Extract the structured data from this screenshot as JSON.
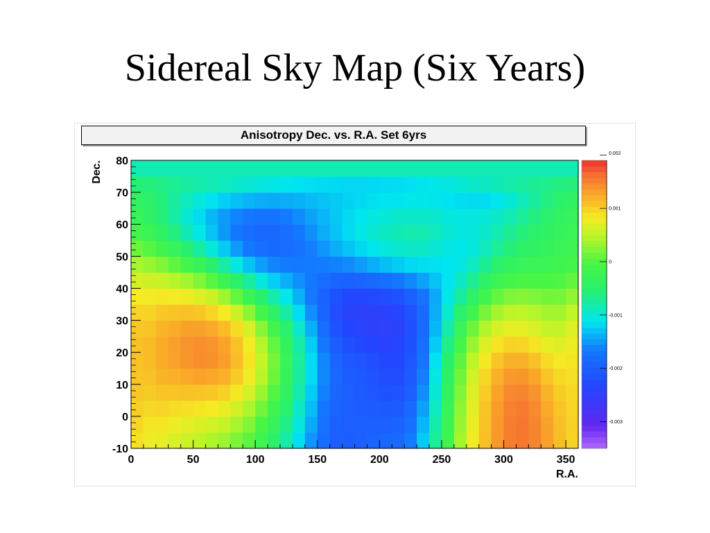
{
  "slide": {
    "title": "Sidereal Sky Map (Six Years)"
  },
  "chart_data": {
    "type": "heatmap",
    "title": "Anisotropy Dec. vs. R.A.  Set 6yrs",
    "xlabel": "R.A.",
    "ylabel": "Dec.",
    "xlim": [
      0,
      360
    ],
    "ylim": [
      -10,
      80
    ],
    "x_ticks": [
      "0",
      "50",
      "100",
      "150",
      "200",
      "250",
      "300",
      "350"
    ],
    "y_ticks": [
      "-10",
      "0",
      "10",
      "20",
      "30",
      "40",
      "50",
      "60",
      "70",
      "80"
    ],
    "z_range": [
      -0.0035,
      0.0019
    ],
    "palette_ticks": [
      "0.002",
      "0.001",
      "0",
      "-0.001",
      "-0.002",
      "-0.003"
    ],
    "x_bin_centers": [
      5,
      15,
      25,
      35,
      45,
      55,
      65,
      75,
      85,
      95,
      105,
      115,
      125,
      135,
      145,
      155,
      165,
      175,
      185,
      195,
      205,
      215,
      225,
      235,
      245,
      255,
      265,
      275,
      285,
      295,
      305,
      315,
      325,
      335,
      345,
      355
    ],
    "y_bin_centers": [
      -7.5,
      -2.5,
      2.5,
      7.5,
      12.5,
      17.5,
      22.5,
      27.5,
      32.5,
      37.5,
      42.5,
      47.5,
      52.5,
      57.5,
      62.5,
      67.5,
      72.5,
      77.5
    ],
    "z_rows": [
      [
        0.00089,
        0.00078,
        0.00075,
        0.00065,
        0.00058,
        0.0005,
        0.00043,
        0.00034,
        0.0002,
        5e-05,
        -0.00018,
        -0.00046,
        -0.0008,
        -0.00116,
        -0.00152,
        -0.00181,
        -0.002,
        -0.00201,
        -0.00197,
        -0.00192,
        -0.00189,
        -0.00184,
        -0.00165,
        -0.00126,
        -0.00072,
        -0.00013,
        0.00038,
        0.00079,
        0.00111,
        0.00136,
        0.00153,
        0.00157,
        0.00149,
        0.00131,
        0.00112,
        0.00098
      ],
      [
        0.00095,
        0.00085,
        0.00085,
        0.00077,
        0.00072,
        0.00066,
        0.0006,
        0.00053,
        0.00039,
        0.00022,
        -2e-05,
        -0.0003,
        -0.00066,
        -0.00104,
        -0.00142,
        -0.00174,
        -0.00196,
        -0.002,
        -0.00199,
        -0.00197,
        -0.00197,
        -0.00193,
        -0.00175,
        -0.00136,
        -0.00081,
        -0.0002,
        0.00033,
        0.00076,
        0.0011,
        0.00136,
        0.00153,
        0.00157,
        0.00149,
        0.0013,
        0.00111,
        0.00099
      ],
      [
        0.001,
        0.00094,
        0.00097,
        0.00092,
        0.00089,
        0.00086,
        0.00082,
        0.00075,
        0.00061,
        0.00042,
        0.00016,
        -0.00014,
        -0.00052,
        -0.00093,
        -0.00133,
        -0.00168,
        -0.00192,
        -0.002,
        -0.00202,
        -0.00204,
        -0.00207,
        -0.00204,
        -0.00186,
        -0.00146,
        -0.0009,
        -0.00027,
        0.00028,
        0.00072,
        0.00107,
        0.00134,
        0.00151,
        0.00155,
        0.00146,
        0.00126,
        0.00108,
        0.00097
      ],
      [
        0.00105,
        0.00103,
        0.00108,
        0.00108,
        0.00109,
        0.00108,
        0.00106,
        0.00099,
        0.00084,
        0.00062,
        0.00034,
        1e-05,
        -0.00039,
        -0.00082,
        -0.00125,
        -0.00162,
        -0.00189,
        -0.002,
        -0.00204,
        -0.0021,
        -0.00216,
        -0.00215,
        -0.00197,
        -0.00155,
        -0.00099,
        -0.00034,
        0.00022,
        0.00067,
        0.00102,
        0.00129,
        0.00146,
        0.00149,
        0.00139,
        0.00119,
        0.00102,
        0.00094
      ],
      [
        0.00108,
        0.00109,
        0.00118,
        0.00121,
        0.00126,
        0.00129,
        0.00128,
        0.00121,
        0.00103,
        0.00079,
        0.00048,
        0.00013,
        -0.0003,
        -0.00074,
        -0.00118,
        -0.00158,
        -0.00187,
        -0.00201,
        -0.00207,
        -0.00214,
        -0.00223,
        -0.00223,
        -0.00205,
        -0.00163,
        -0.00106,
        -0.00042,
        0.00015,
        0.0006,
        0.00095,
        0.00121,
        0.00136,
        0.00138,
        0.00127,
        0.00108,
        0.00094,
        0.0009
      ],
      [
        0.0011,
        0.00113,
        0.00124,
        0.00131,
        0.00138,
        0.00142,
        0.00141,
        0.00133,
        0.00114,
        0.00087,
        0.00054,
        0.00017,
        -0.00027,
        -0.00072,
        -0.00118,
        -0.00159,
        -0.00191,
        -0.00206,
        -0.00213,
        -0.00221,
        -0.00229,
        -0.00229,
        -0.00211,
        -0.0017,
        -0.00114,
        -0.00051,
        5e-05,
        0.00049,
        0.00083,
        0.00107,
        0.0012,
        0.0012,
        0.00109,
        0.00092,
        0.00083,
        0.00085
      ],
      [
        0.0011,
        0.00113,
        0.00124,
        0.00132,
        0.00139,
        0.00142,
        0.00139,
        0.00129,
        0.00109,
        0.00081,
        0.00046,
        9e-05,
        -0.00034,
        -0.00079,
        -0.00125,
        -0.00168,
        -0.00202,
        -0.00219,
        -0.00227,
        -0.00233,
        -0.00239,
        -0.00236,
        -0.00216,
        -0.00177,
        -0.00125,
        -0.00064,
        -9e-05,
        0.00033,
        0.00066,
        0.00087,
        0.00098,
        0.00097,
        0.00087,
        0.00073,
        0.00068,
        0.00077
      ],
      [
        0.00106,
        0.00108,
        0.00118,
        0.00124,
        0.0013,
        0.0013,
        0.00125,
        0.00113,
        0.00091,
        0.00062,
        0.00026,
        -0.00011,
        -0.00052,
        -0.00095,
        -0.00139,
        -0.00181,
        -0.00215,
        -0.00233,
        -0.0024,
        -0.00244,
        -0.00245,
        -0.00239,
        -0.0022,
        -0.00183,
        -0.00135,
        -0.0008,
        -0.00027,
        0.00013,
        0.00044,
        0.00063,
        0.00073,
        0.00073,
        0.00065,
        0.00054,
        0.00053,
        0.00067
      ],
      [
        0.00097,
        0.00098,
        0.00105,
        0.00108,
        0.0011,
        0.00106,
        0.00097,
        0.00082,
        0.00058,
        0.00027,
        -8e-05,
        -0.00043,
        -0.00079,
        -0.00117,
        -0.00155,
        -0.00192,
        -0.00222,
        -0.00239,
        -0.00244,
        -0.00244,
        -0.00243,
        -0.00234,
        -0.00215,
        -0.00183,
        -0.00141,
        -0.00096,
        -0.00052,
        -0.00015,
        0.00018,
        0.00038,
        0.00049,
        0.00051,
        0.00045,
        0.00037,
        0.00037,
        0.00051
      ],
      [
        0.00082,
        0.00081,
        0.00084,
        0.00081,
        0.00078,
        0.00069,
        0.00055,
        0.00035,
        9e-05,
        -0.00022,
        -0.00053,
        -0.00082,
        -0.00109,
        -0.00138,
        -0.00166,
        -0.00194,
        -0.00216,
        -0.00228,
        -0.0023,
        -0.00227,
        -0.00222,
        -0.00214,
        -0.00197,
        -0.00174,
        -0.00142,
        -0.00108,
        -0.00075,
        -0.00044,
        -0.00014,
        9e-05,
        0.00021,
        0.00024,
        0.00021,
        0.00016,
        0.00017,
        0.00029
      ],
      [
        0.00062,
        0.00058,
        0.00055,
        0.00046,
        0.00037,
        0.00022,
        3e-05,
        -0.00021,
        -0.00049,
        -0.00077,
        -0.00103,
        -0.00124,
        -0.00139,
        -0.00154,
        -0.00167,
        -0.00181,
        -0.00191,
        -0.00195,
        -0.00191,
        -0.00184,
        -0.00178,
        -0.00169,
        -0.00158,
        -0.00146,
        -0.0013,
        -0.00113,
        -0.00093,
        -0.00069,
        -0.00044,
        -0.00023,
        -8e-05,
        -2e-05,
        -3e-05,
        -3e-05,
        -1e-05,
        8e-05
      ],
      [
        0.00039,
        0.00032,
        0.00022,
        7e-05,
        -9e-05,
        -0.00028,
        -0.00053,
        -0.00078,
        -0.00105,
        -0.0013,
        -0.00148,
        -0.0016,
        -0.00165,
        -0.00166,
        -0.00165,
        -0.00164,
        -0.00162,
        -0.00157,
        -0.00149,
        -0.0014,
        -0.00132,
        -0.00125,
        -0.00119,
        -0.00116,
        -0.00115,
        -0.00113,
        -0.00106,
        -0.00091,
        -0.00071,
        -0.00052,
        -0.00036,
        -0.00027,
        -0.00024,
        -0.00021,
        -0.00016,
        -9e-05
      ],
      [
        0.00013,
        3e-05,
        -0.00013,
        -0.00032,
        -0.00054,
        -0.00077,
        -0.00102,
        -0.00126,
        -0.00149,
        -0.00168,
        -0.0018,
        -0.00184,
        -0.00182,
        -0.00174,
        -0.00163,
        -0.00152,
        -0.0014,
        -0.0013,
        -0.0012,
        -0.00111,
        -0.00104,
        -0.00097,
        -0.00093,
        -0.00093,
        -0.00099,
        -0.00106,
        -0.00109,
        -0.00103,
        -0.00089,
        -0.00072,
        -0.00058,
        -0.00047,
        -0.0004,
        -0.00033,
        -0.00026,
        -0.0002
      ],
      [
        -0.00011,
        -0.00023,
        -0.00041,
        -0.00062,
        -0.00086,
        -0.00108,
        -0.0013,
        -0.0015,
        -0.00168,
        -0.00181,
        -0.00187,
        -0.00186,
        -0.00179,
        -0.00168,
        -0.00155,
        -0.00141,
        -0.00129,
        -0.00118,
        -0.00108,
        -0.00099,
        -0.00092,
        -0.00086,
        -0.00082,
        -0.00084,
        -0.0009,
        -0.00099,
        -0.00105,
        -0.00103,
        -0.00095,
        -0.00083,
        -0.00071,
        -0.00059,
        -0.00049,
        -0.00039,
        -0.00031,
        -0.00024
      ],
      [
        -0.00028,
        -0.0004,
        -0.00057,
        -0.00078,
        -0.00099,
        -0.00118,
        -0.00135,
        -0.00149,
        -0.00161,
        -0.00169,
        -0.00172,
        -0.00171,
        -0.00165,
        -0.00156,
        -0.00146,
        -0.00136,
        -0.00127,
        -0.00119,
        -0.00112,
        -0.00106,
        -0.00101,
        -0.00096,
        -0.00094,
        -0.00094,
        -0.00098,
        -0.00103,
        -0.00106,
        -0.00105,
        -0.00101,
        -0.00094,
        -0.00085,
        -0.00073,
        -0.00061,
        -0.00049,
        -0.00038,
        -0.0003
      ],
      [
        -0.00038,
        -0.00047,
        -0.0006,
        -0.00075,
        -0.0009,
        -0.00103,
        -0.00114,
        -0.00123,
        -0.00131,
        -0.00137,
        -0.00141,
        -0.00142,
        -0.00141,
        -0.00138,
        -0.00134,
        -0.0013,
        -0.00126,
        -0.00122,
        -0.00119,
        -0.00116,
        -0.00113,
        -0.00111,
        -0.00109,
        -0.00109,
        -0.00111,
        -0.00114,
        -0.00117,
        -0.00118,
        -0.00117,
        -0.00111,
        -0.00102,
        -0.00089,
        -0.00075,
        -0.00061,
        -0.00049,
        -0.00041
      ],
      [
        -0.00056,
        -0.00059,
        -0.00064,
        -0.0007,
        -0.00075,
        -0.0008,
        -0.00085,
        -0.0009,
        -0.00095,
        -0.001,
        -0.00104,
        -0.00108,
        -0.00111,
        -0.00114,
        -0.00116,
        -0.00118,
        -0.00119,
        -0.0012,
        -0.0012,
        -0.00119,
        -0.00118,
        -0.00117,
        -0.00115,
        -0.00112,
        -0.00109,
        -0.00105,
        -0.00101,
        -0.00096,
        -0.00092,
        -0.00087,
        -0.00081,
        -0.00076,
        -0.00071,
        -0.00066,
        -0.00061,
        -0.00058
      ],
      [
        -0.00085,
        -0.00085,
        -0.00085,
        -0.00085,
        -0.00085,
        -0.00085,
        -0.00085,
        -0.00085,
        -0.00085,
        -0.00085,
        -0.00085,
        -0.00085,
        -0.00085,
        -0.00085,
        -0.00085,
        -0.00085,
        -0.00085,
        -0.00085,
        -0.00085,
        -0.00085,
        -0.00085,
        -0.00085,
        -0.00085,
        -0.00085,
        -0.00085,
        -0.00085,
        -0.00085,
        -0.00085,
        -0.00085,
        -0.00085,
        -0.00085,
        -0.00085,
        -0.00085,
        -0.00085,
        -0.00085,
        -0.00085
      ]
    ]
  }
}
